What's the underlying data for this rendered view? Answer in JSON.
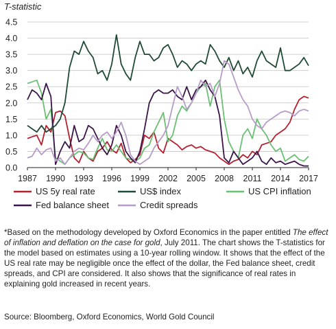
{
  "chart_data": {
    "type": "line",
    "ylabel": "T-statistic",
    "ylim": [
      0,
      4.5
    ],
    "yticks": [
      "0.0",
      "0.5",
      "1.0",
      "1.5",
      "2.0",
      "2.5",
      "3.0",
      "3.5",
      "4.0",
      "4.5"
    ],
    "xlim": [
      1987,
      2017
    ],
    "xticks": [
      "1987",
      "1990",
      "1993",
      "1996",
      "1999",
      "2002",
      "2005",
      "2008",
      "2011",
      "2014",
      "2017"
    ],
    "grid": "horizontal",
    "legend": "bottom",
    "series": [
      {
        "name": "US 5y real rate",
        "color": "#b5202e",
        "x": [
          1987,
          1987.5,
          1988,
          1988.5,
          1989,
          1989.5,
          1990,
          1990.5,
          1991,
          1991.5,
          1992,
          1992.5,
          1993,
          1993.5,
          1994,
          1994.5,
          1995,
          1995.5,
          1996,
          1996.5,
          1997,
          1997.5,
          1998,
          1998.5,
          1999,
          1999.5,
          2000,
          2000.5,
          2001,
          2001.5,
          2002,
          2002.5,
          2003,
          2003.5,
          2004,
          2004.5,
          2005,
          2005.5,
          2006,
          2006.5,
          2007,
          2007.5,
          2008,
          2008.5,
          2009,
          2009.5,
          2010,
          2010.5,
          2011,
          2011.5,
          2012,
          2012.5,
          2013,
          2013.5,
          2014,
          2014.5,
          2015,
          2015.5,
          2016,
          2016.5,
          2017
        ],
        "y": [
          0.9,
          0.95,
          1.0,
          0.7,
          1.3,
          1.1,
          1.7,
          1.75,
          1.6,
          0.9,
          0.3,
          0.15,
          0.5,
          0.3,
          0.2,
          0.5,
          0.6,
          0.8,
          0.55,
          0.45,
          0.75,
          0.3,
          0.15,
          0.25,
          0.4,
          1.0,
          0.9,
          1.1,
          0.6,
          0.45,
          0.9,
          0.8,
          0.7,
          0.55,
          0.65,
          0.7,
          0.6,
          0.65,
          0.55,
          0.5,
          0.45,
          0.3,
          0.2,
          0.1,
          0.2,
          0.25,
          0.4,
          0.3,
          0.5,
          0.4,
          0.7,
          0.75,
          0.8,
          1.0,
          1.1,
          1.2,
          1.4,
          1.8,
          2.1,
          2.2,
          2.15
        ]
      },
      {
        "name": "US$ index",
        "color": "#1f4a33",
        "x": [
          1987,
          1987.5,
          1988,
          1988.5,
          1989,
          1989.5,
          1990,
          1990.5,
          1991,
          1991.5,
          1992,
          1992.5,
          1993,
          1993.5,
          1994,
          1994.5,
          1995,
          1995.5,
          1996,
          1996.5,
          1997,
          1997.5,
          1998,
          1998.5,
          1999,
          1999.5,
          2000,
          2000.5,
          2001,
          2001.5,
          2002,
          2002.5,
          2003,
          2003.5,
          2004,
          2004.5,
          2005,
          2005.5,
          2006,
          2006.5,
          2007,
          2007.5,
          2008,
          2008.5,
          2009,
          2009.5,
          2010,
          2010.5,
          2011,
          2011.5,
          2012,
          2012.5,
          2013,
          2013.5,
          2014,
          2014.5,
          2015,
          2015.5,
          2016,
          2016.5,
          2017
        ],
        "y": [
          1.3,
          1.2,
          1.1,
          1.3,
          1.1,
          1.2,
          1.3,
          1.5,
          2.0,
          3.1,
          3.6,
          3.5,
          3.9,
          3.6,
          3.4,
          2.9,
          3.0,
          2.7,
          3.2,
          4.1,
          3.2,
          2.9,
          2.7,
          3.4,
          3.9,
          3.5,
          3.5,
          3.3,
          3.4,
          3.7,
          3.8,
          3.5,
          3.1,
          3.3,
          3.2,
          3.0,
          3.2,
          3.3,
          3.2,
          3.8,
          3.6,
          3.3,
          3.1,
          3.4,
          3.0,
          3.3,
          2.9,
          3.1,
          2.8,
          3.3,
          3.6,
          3.3,
          3.2,
          3.1,
          3.7,
          3.0,
          3.0,
          3.1,
          3.2,
          3.4,
          3.15
        ]
      },
      {
        "name": "US CPI inflation",
        "color": "#69bf72",
        "x": [
          1987,
          1987.5,
          1988,
          1988.5,
          1989,
          1989.5,
          1990,
          1990.5,
          1991,
          1991.5,
          1992,
          1992.5,
          1993,
          1993.5,
          1994,
          1994.5,
          1995,
          1995.5,
          1996,
          1996.5,
          1997,
          1997.5,
          1998,
          1998.5,
          1999,
          1999.5,
          2000,
          2000.5,
          2001,
          2001.5,
          2002,
          2002.5,
          2003,
          2003.5,
          2004,
          2004.5,
          2005,
          2005.5,
          2006,
          2006.5,
          2007,
          2007.5,
          2008,
          2008.5,
          2009,
          2009.5,
          2010,
          2010.5,
          2011,
          2011.5,
          2012,
          2012.5,
          2013,
          2013.5,
          2014,
          2014.5,
          2015,
          2015.5,
          2016,
          2016.5,
          2017
        ],
        "y": [
          2.6,
          2.65,
          2.7,
          2.3,
          1.5,
          1.8,
          0.3,
          0.2,
          0.1,
          0.3,
          0.4,
          0.5,
          0.45,
          0.3,
          0.25,
          0.6,
          0.9,
          0.55,
          0.5,
          0.7,
          0.5,
          0.3,
          0.25,
          0.2,
          0.3,
          0.6,
          0.7,
          1.1,
          1.4,
          1.7,
          0.8,
          1.0,
          1.6,
          1.9,
          1.75,
          2.0,
          2.3,
          2.5,
          2.6,
          1.9,
          2.5,
          2.7,
          1.5,
          0.8,
          0.5,
          0.3,
          1.0,
          1.2,
          0.9,
          1.5,
          1.2,
          1.0,
          0.7,
          0.5,
          0.6,
          0.2,
          0.3,
          0.4,
          0.25,
          0.2,
          0.35
        ]
      },
      {
        "name": "Fed balance sheet",
        "color": "#3a1548",
        "x": [
          1987,
          1987.5,
          1988,
          1988.5,
          1989,
          1989.5,
          1990,
          1990.5,
          1991,
          1991.5,
          1992,
          1992.5,
          1993,
          1993.5,
          1994,
          1994.5,
          1995,
          1995.5,
          1996,
          1996.5,
          1997,
          1997.5,
          1998,
          1998.5,
          1999,
          1999.5,
          2000,
          2000.5,
          2001,
          2001.5,
          2002,
          2002.5,
          2003,
          2003.5,
          2004,
          2004.5,
          2005,
          2005.5,
          2006,
          2006.5,
          2007,
          2007.5,
          2008,
          2008.5,
          2009,
          2009.5,
          2010,
          2010.5,
          2011,
          2011.5,
          2012,
          2012.5,
          2013,
          2013.5,
          2014,
          2014.5,
          2015,
          2015.5,
          2016,
          2016.5,
          2017
        ],
        "y": [
          2.1,
          2.4,
          2.3,
          2.1,
          2.6,
          2.2,
          0.1,
          0.5,
          0.8,
          0.6,
          1.3,
          0.8,
          0.9,
          1.3,
          1.2,
          0.9,
          0.6,
          0.4,
          0.7,
          1.3,
          1.0,
          0.5,
          0.3,
          0.15,
          0.5,
          1.2,
          2.0,
          2.3,
          2.4,
          2.3,
          2.3,
          2.4,
          2.2,
          2.1,
          2.5,
          2.1,
          2.4,
          2.5,
          2.7,
          2.4,
          2.2,
          1.6,
          0.3,
          0.15,
          0.5,
          0.3,
          0.1,
          0.2,
          0.3,
          0.5,
          0.2,
          0.1,
          0.3,
          0.15,
          0.2,
          0.1,
          0.15,
          0.2,
          0.1,
          0.05,
          0.05
        ]
      },
      {
        "name": "Credit spreads",
        "color": "#b79bc8",
        "x": [
          1987,
          1987.5,
          1988,
          1988.5,
          1989,
          1989.5,
          1990,
          1990.5,
          1991,
          1991.5,
          1992,
          1992.5,
          1993,
          1993.5,
          1994,
          1994.5,
          1995,
          1995.5,
          1996,
          1996.5,
          1997,
          1997.5,
          1998,
          1998.5,
          1999,
          1999.5,
          2000,
          2000.5,
          2001,
          2001.5,
          2002,
          2002.5,
          2003,
          2003.5,
          2004,
          2004.5,
          2005,
          2005.5,
          2006,
          2006.5,
          2007,
          2007.5,
          2008,
          2008.5,
          2009,
          2009.5,
          2010,
          2010.5,
          2011,
          2011.5,
          2012,
          2012.5,
          2013,
          2013.5,
          2014,
          2014.5,
          2015,
          2015.5,
          2016,
          2016.5,
          2017
        ],
        "y": [
          0.3,
          0.35,
          0.6,
          0.4,
          0.55,
          0.6,
          0.2,
          0.3,
          0.1,
          0.3,
          0.5,
          0.6,
          0.55,
          0.75,
          1.0,
          0.8,
          1.0,
          1.1,
          0.9,
          1.1,
          1.4,
          1.0,
          0.4,
          0.2,
          0.1,
          0.2,
          0.3,
          0.6,
          0.8,
          1.0,
          1.3,
          1.9,
          2.5,
          2.2,
          1.8,
          2.0,
          2.3,
          2.7,
          2.5,
          2.6,
          2.2,
          2.6,
          3.3,
          3.2,
          2.8,
          2.4,
          2.1,
          1.9,
          1.5,
          1.3,
          1.2,
          1.4,
          1.5,
          1.6,
          1.7,
          1.75,
          1.7,
          1.6,
          1.75,
          1.8,
          1.75
        ]
      }
    ]
  },
  "footnote": {
    "before_italic": "*Based on the methodology developed by Oxford Economics in the paper entitled ",
    "italic": "The effect of inflation and deflation on the case for gold",
    "after_italic": ", July 2011. The chart shows the T-statistics for the model based on estimates using a 10-year rolling window. It shows that the effect of the US real rate may be negligible once the effect of the dollar, the Fed balance sheet, credit spreads, and CPI are considered. It also shows that the significance of real rates in explaining gold increased in recent years."
  },
  "source": "Source: Bloomberg, Oxford Economics, World Gold Council"
}
